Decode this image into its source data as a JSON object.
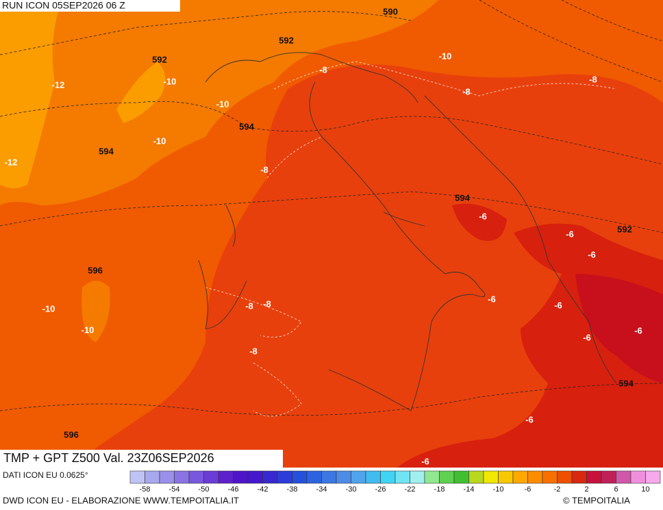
{
  "header": {
    "run_label": "RUN ICON 05SEP2026 06 Z"
  },
  "map": {
    "title": "TMP + GPT Z500 Val. 23Z06SEP2026",
    "gpt_labels": [
      590,
      592,
      592,
      594,
      594,
      594,
      592,
      596,
      594,
      596
    ],
    "tmp_labels": [
      -10,
      -8,
      -12,
      -10,
      -8,
      -8,
      -10,
      -10,
      -12,
      -8,
      -6,
      -6,
      -6,
      -8,
      -8,
      -10,
      -6,
      -6,
      -10,
      -6,
      -6,
      -8,
      -6,
      -6
    ]
  },
  "legend": {
    "colors": [
      "#c0c4f4",
      "#a8a8ee",
      "#9a90ea",
      "#8a74e4",
      "#7a58de",
      "#6c3cd6",
      "#5e20cc",
      "#5014c8",
      "#4418cc",
      "#3828d0",
      "#2c3cd8",
      "#2450dc",
      "#2c64e0",
      "#3c78e4",
      "#4c8ce8",
      "#50a4ec",
      "#40bcf0",
      "#40d4f4",
      "#70e4f4",
      "#a0f0f0",
      "#90e890",
      "#60d050",
      "#40c030",
      "#b8d820",
      "#f0e800",
      "#f8c800",
      "#ffa800",
      "#ff8c00",
      "#f87000",
      "#ec5000",
      "#d82810",
      "#c8103c",
      "#c02058",
      "#d058a8",
      "#f090dc",
      "#f8a8ec"
    ],
    "ticks": [
      -58,
      -54,
      -50,
      -46,
      -42,
      -38,
      -34,
      -30,
      -26,
      -22,
      -18,
      -14,
      -10,
      -6,
      -2,
      2,
      6,
      10
    ]
  },
  "footer": {
    "data_source": "DATI ICON EU 0.0625°",
    "credits": "DWD ICON EU - ELABORAZIONE WWW.TEMPOITALIA.IT",
    "copyright": "© TEMPOITALIA"
  }
}
